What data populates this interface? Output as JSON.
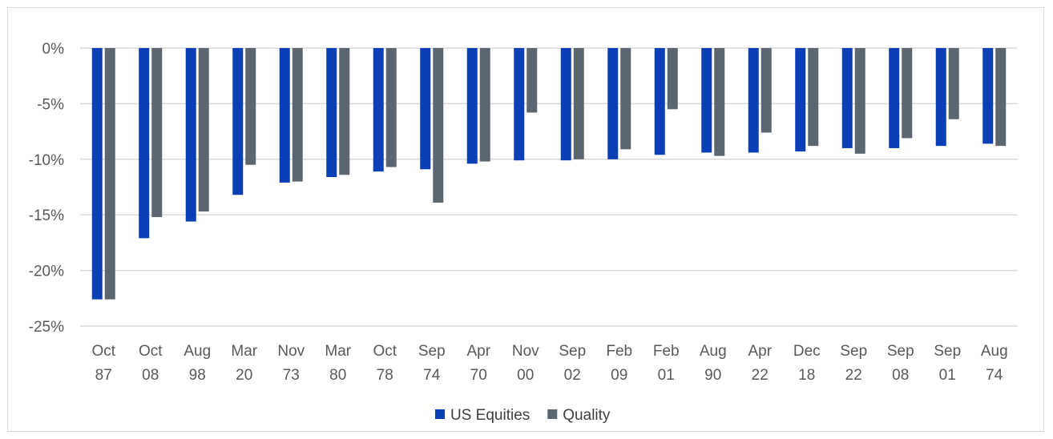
{
  "chart_data": {
    "type": "bar",
    "title": "",
    "xlabel": "",
    "ylabel": "",
    "ylim": [
      -25,
      0
    ],
    "yticks": [
      0,
      -5,
      -10,
      -15,
      -20,
      -25
    ],
    "ytick_labels": [
      "0%",
      "-5%",
      "-10%",
      "-15%",
      "-20%",
      "-25%"
    ],
    "grid": true,
    "legend_position": "bottom",
    "categories": [
      [
        "Oct",
        "87"
      ],
      [
        "Oct",
        "08"
      ],
      [
        "Aug",
        "98"
      ],
      [
        "Mar",
        "20"
      ],
      [
        "Nov",
        "73"
      ],
      [
        "Mar",
        "80"
      ],
      [
        "Oct",
        "78"
      ],
      [
        "Sep",
        "74"
      ],
      [
        "Apr",
        "70"
      ],
      [
        "Nov",
        "00"
      ],
      [
        "Sep",
        "02"
      ],
      [
        "Feb",
        "09"
      ],
      [
        "Feb",
        "01"
      ],
      [
        "Aug",
        "90"
      ],
      [
        "Apr",
        "22"
      ],
      [
        "Dec",
        "18"
      ],
      [
        "Sep",
        "22"
      ],
      [
        "Sep",
        "08"
      ],
      [
        "Sep",
        "01"
      ],
      [
        "Aug",
        "74"
      ]
    ],
    "series": [
      {
        "name": "US Equities",
        "color": "#0a3fb5",
        "values": [
          -22.6,
          -17.1,
          -15.6,
          -13.2,
          -12.1,
          -11.6,
          -11.1,
          -10.9,
          -10.4,
          -10.1,
          -10.1,
          -10.0,
          -9.6,
          -9.4,
          -9.4,
          -9.3,
          -9.0,
          -9.0,
          -8.8,
          -8.6
        ]
      },
      {
        "name": "Quality",
        "color": "#5b6670",
        "values": [
          -22.6,
          -15.2,
          -14.7,
          -10.5,
          -12.0,
          -11.4,
          -10.7,
          -13.9,
          -10.2,
          -5.8,
          -10.0,
          -9.1,
          -5.5,
          -9.7,
          -7.6,
          -8.8,
          -9.5,
          -8.1,
          -6.4,
          -8.8
        ]
      }
    ]
  }
}
